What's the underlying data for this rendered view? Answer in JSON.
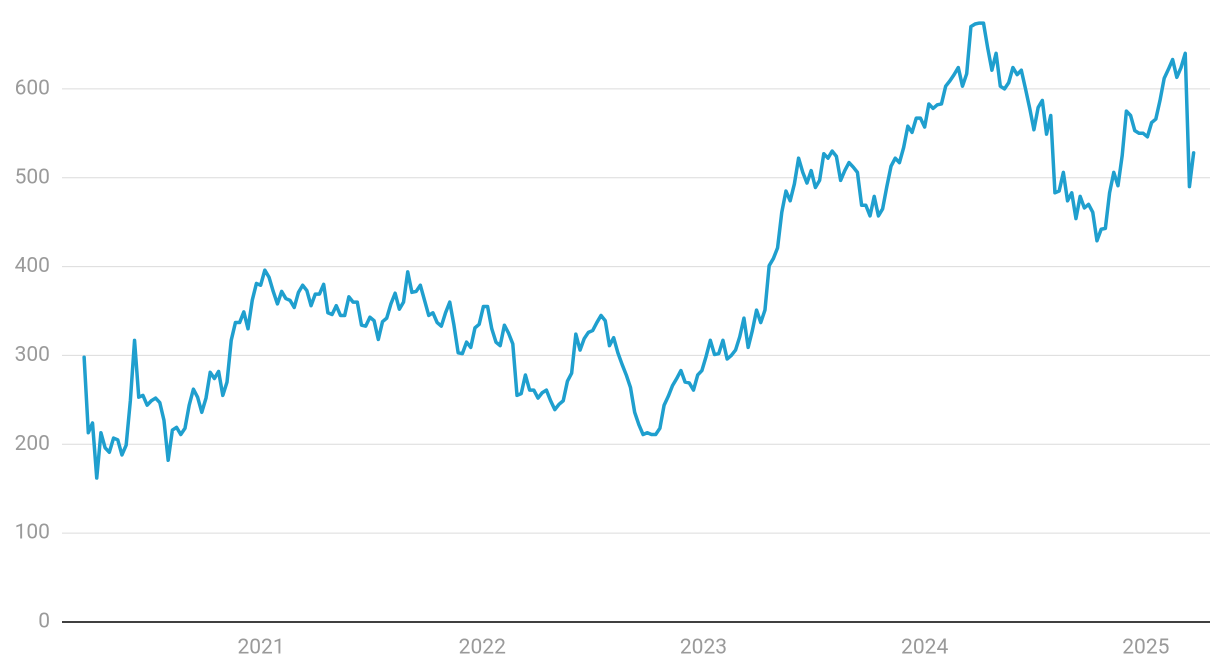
{
  "chart_data": {
    "type": "line",
    "color": "#1f9fce",
    "grid": true,
    "xlim": [
      2020.1,
      2025.29
    ],
    "xticks": [
      2021,
      2022,
      2023,
      2024,
      2025
    ],
    "ylim": [
      0,
      700
    ],
    "yticks": [
      0,
      100,
      200,
      300,
      400,
      500,
      600
    ],
    "x": [
      2020.2,
      2020.219,
      2020.238,
      2020.257,
      2020.276,
      2020.295,
      2020.314,
      2020.333,
      2020.352,
      2020.371,
      2020.39,
      2020.409,
      2020.428,
      2020.447,
      2020.466,
      2020.485,
      2020.504,
      2020.523,
      2020.542,
      2020.561,
      2020.58,
      2020.599,
      2020.618,
      2020.637,
      2020.656,
      2020.675,
      2020.694,
      2020.713,
      2020.732,
      2020.751,
      2020.77,
      2020.789,
      2020.808,
      2020.827,
      2020.846,
      2020.865,
      2020.884,
      2020.903,
      2020.922,
      2020.941,
      2020.96,
      2020.979,
      2020.998,
      2021.017,
      2021.036,
      2021.055,
      2021.074,
      2021.093,
      2021.112,
      2021.131,
      2021.15,
      2021.169,
      2021.188,
      2021.207,
      2021.226,
      2021.245,
      2021.264,
      2021.283,
      2021.302,
      2021.321,
      2021.34,
      2021.359,
      2021.378,
      2021.397,
      2021.416,
      2021.435,
      2021.454,
      2021.473,
      2021.492,
      2021.511,
      2021.53,
      2021.549,
      2021.568,
      2021.587,
      2021.606,
      2021.625,
      2021.644,
      2021.663,
      2021.682,
      2021.701,
      2021.72,
      2021.739,
      2021.758,
      2021.777,
      2021.796,
      2021.815,
      2021.834,
      2021.853,
      2021.872,
      2021.891,
      2021.91,
      2021.929,
      2021.948,
      2021.967,
      2021.986,
      2022.005,
      2022.024,
      2022.043,
      2022.062,
      2022.081,
      2022.1,
      2022.119,
      2022.138,
      2022.157,
      2022.176,
      2022.195,
      2022.214,
      2022.233,
      2022.252,
      2022.271,
      2022.29,
      2022.309,
      2022.328,
      2022.347,
      2022.366,
      2022.385,
      2022.404,
      2022.423,
      2022.442,
      2022.461,
      2022.48,
      2022.499,
      2022.518,
      2022.537,
      2022.556,
      2022.575,
      2022.594,
      2022.613,
      2022.632,
      2022.651,
      2022.67,
      2022.689,
      2022.708,
      2022.727,
      2022.746,
      2022.765,
      2022.784,
      2022.803,
      2022.822,
      2022.841,
      2022.86,
      2022.879,
      2022.898,
      2022.917,
      2022.936,
      2022.955,
      2022.974,
      2022.993,
      2023.012,
      2023.031,
      2023.05,
      2023.069,
      2023.088,
      2023.107,
      2023.126,
      2023.145,
      2023.164,
      2023.183,
      2023.202,
      2023.221,
      2023.24,
      2023.259,
      2023.278,
      2023.297,
      2023.316,
      2023.335,
      2023.354,
      2023.373,
      2023.392,
      2023.411,
      2023.43,
      2023.449,
      2023.468,
      2023.487,
      2023.506,
      2023.525,
      2023.544,
      2023.563,
      2023.582,
      2023.601,
      2023.62,
      2023.639,
      2023.658,
      2023.677,
      2023.696,
      2023.715,
      2023.734,
      2023.753,
      2023.772,
      2023.791,
      2023.81,
      2023.829,
      2023.848,
      2023.867,
      2023.886,
      2023.905,
      2023.924,
      2023.943,
      2023.962,
      2023.981,
      2024.0,
      2024.019,
      2024.038,
      2024.057,
      2024.076,
      2024.095,
      2024.114,
      2024.133,
      2024.152,
      2024.171,
      2024.19,
      2024.209,
      2024.228,
      2024.247,
      2024.266,
      2024.285,
      2024.304,
      2024.323,
      2024.342,
      2024.361,
      2024.38,
      2024.399,
      2024.418,
      2024.437,
      2024.456,
      2024.475,
      2024.494,
      2024.513,
      2024.532,
      2024.551,
      2024.57,
      2024.589,
      2024.608,
      2024.627,
      2024.646,
      2024.665,
      2024.684,
      2024.703,
      2024.722,
      2024.741,
      2024.76,
      2024.779,
      2024.798,
      2024.817,
      2024.836,
      2024.855,
      2024.874,
      2024.893,
      2024.912,
      2024.931,
      2024.95,
      2024.969,
      2024.988,
      2025.007,
      2025.026,
      2025.045,
      2025.064,
      2025.083,
      2025.102,
      2025.121,
      2025.14,
      2025.159,
      2025.178,
      2025.197,
      2025.216
    ],
    "values": [
      298,
      213,
      224,
      162,
      213,
      196,
      191,
      207,
      205,
      188,
      199,
      249,
      317,
      253,
      255,
      244,
      249,
      252,
      247,
      227,
      182,
      216,
      219,
      211,
      218,
      244,
      262,
      253,
      236,
      252,
      281,
      274,
      282,
      255,
      270,
      317,
      337,
      337,
      349,
      330,
      362,
      381,
      379,
      396,
      388,
      372,
      358,
      372,
      364,
      362,
      354,
      371,
      379,
      373,
      356,
      369,
      369,
      380,
      348,
      346,
      356,
      345,
      345,
      366,
      360,
      360,
      334,
      333,
      343,
      339,
      318,
      338,
      342,
      358,
      370,
      352,
      360,
      394,
      371,
      372,
      379,
      362,
      345,
      348,
      337,
      333,
      348,
      360,
      334,
      303,
      302,
      315,
      309,
      331,
      335,
      355,
      355,
      330,
      315,
      311,
      334,
      325,
      313,
      255,
      257,
      278,
      261,
      261,
      252,
      258,
      261,
      249,
      239,
      245,
      249,
      271,
      280,
      324,
      306,
      319,
      326,
      328,
      337,
      345,
      339,
      311,
      320,
      303,
      290,
      278,
      264,
      236,
      222,
      211,
      213,
      211,
      211,
      218,
      244,
      254,
      266,
      274,
      283,
      270,
      269,
      261,
      278,
      283,
      299,
      317,
      301,
      302,
      317,
      296,
      300,
      306,
      321,
      342,
      309,
      328,
      351,
      337,
      351,
      401,
      409,
      421,
      461,
      485,
      474,
      493,
      522,
      506,
      494,
      508,
      489,
      497,
      527,
      522,
      530,
      524,
      497,
      508,
      517,
      512,
      506,
      469,
      469,
      457,
      479,
      457,
      465,
      490,
      513,
      522,
      517,
      534,
      558,
      551,
      567,
      567,
      557,
      583,
      578,
      582,
      583,
      603,
      609,
      616,
      624,
      603,
      617,
      670,
      673,
      674,
      674,
      646,
      621,
      640,
      603,
      600,
      607,
      624,
      616,
      621,
      600,
      578,
      554,
      579,
      587,
      549,
      570,
      483,
      485,
      506,
      474,
      483,
      454,
      479,
      466,
      470,
      461,
      429,
      442,
      443,
      483,
      506,
      491,
      525,
      575,
      570,
      553,
      550,
      550,
      546,
      562,
      566,
      587,
      612,
      622,
      633,
      613,
      624,
      640,
      490,
      528
    ]
  }
}
